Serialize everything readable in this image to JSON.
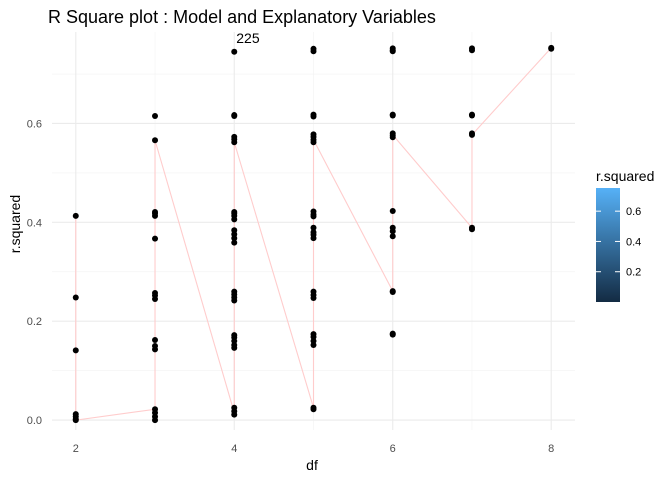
{
  "chart_data": {
    "type": "scatter",
    "title": "R Square plot : Model and Explanatory Variables",
    "xlabel": "df",
    "ylabel": "r.squared",
    "xlim": [
      1.7,
      8.3
    ],
    "ylim": [
      -0.02,
      0.785
    ],
    "x_ticks": [
      2,
      4,
      6,
      8
    ],
    "x_minor_ticks": [
      3,
      5,
      7
    ],
    "y_ticks": [
      0.0,
      0.2,
      0.4,
      0.6
    ],
    "y_tick_labels": [
      "0.0",
      "0.2",
      "0.4",
      "0.6"
    ],
    "y_minor_ticks": [
      0.1,
      0.3,
      0.5,
      0.7
    ],
    "grid": true,
    "point_color": "#000000",
    "line_color": "#ffcccc",
    "points": [
      {
        "df": 2,
        "values": [
          0.413,
          0.248,
          0.141,
          0.012,
          0.007,
          0.002,
          0.0
        ]
      },
      {
        "df": 3,
        "values": [
          0.615,
          0.566,
          0.421,
          0.418,
          0.413,
          0.367,
          0.257,
          0.252,
          0.245,
          0.162,
          0.15,
          0.143,
          0.022,
          0.015,
          0.007,
          0.0
        ]
      },
      {
        "df": 4,
        "values": [
          0.745,
          0.617,
          0.615,
          0.573,
          0.568,
          0.562,
          0.421,
          0.418,
          0.413,
          0.406,
          0.384,
          0.376,
          0.368,
          0.359,
          0.26,
          0.254,
          0.248,
          0.242,
          0.172,
          0.167,
          0.16,
          0.152,
          0.146,
          0.025,
          0.018,
          0.011
        ]
      },
      {
        "df": 5,
        "values": [
          0.751,
          0.746,
          0.618,
          0.614,
          0.578,
          0.573,
          0.567,
          0.562,
          0.422,
          0.416,
          0.412,
          0.389,
          0.38,
          0.375,
          0.368,
          0.26,
          0.253,
          0.247,
          0.174,
          0.168,
          0.16,
          0.152,
          0.025,
          0.022
        ]
      },
      {
        "df": 6,
        "values": [
          0.752,
          0.748,
          0.746,
          0.618,
          0.616,
          0.58,
          0.576,
          0.572,
          0.423,
          0.389,
          0.382,
          0.372,
          0.261,
          0.259,
          0.175,
          0.173
        ]
      },
      {
        "df": 7,
        "values": [
          0.752,
          0.748,
          0.618,
          0.616,
          0.58,
          0.577,
          0.389,
          0.386
        ]
      },
      {
        "df": 8,
        "values": [
          0.753,
          0.751
        ]
      }
    ],
    "path": [
      [
        2,
        0.413
      ],
      [
        2,
        0.0
      ],
      [
        3,
        0.022
      ],
      [
        3,
        0.566
      ],
      [
        4,
        0.015
      ],
      [
        4,
        0.562
      ],
      [
        5,
        0.025
      ],
      [
        5,
        0.567
      ],
      [
        6,
        0.261
      ],
      [
        6,
        0.577
      ],
      [
        7,
        0.389
      ],
      [
        7,
        0.577
      ],
      [
        8,
        0.753
      ]
    ],
    "annotations": [
      {
        "text": "225",
        "x": 4,
        "y": 0.745
      }
    ],
    "legend": {
      "title": "r.squared",
      "position": "right",
      "gradient_from": "#132b43",
      "gradient_to": "#56b1f7",
      "range": [
        0.0,
        0.753
      ],
      "breaks": [
        0.2,
        0.4,
        0.6
      ],
      "labels": [
        "0.2",
        "0.4",
        "0.6"
      ]
    }
  }
}
